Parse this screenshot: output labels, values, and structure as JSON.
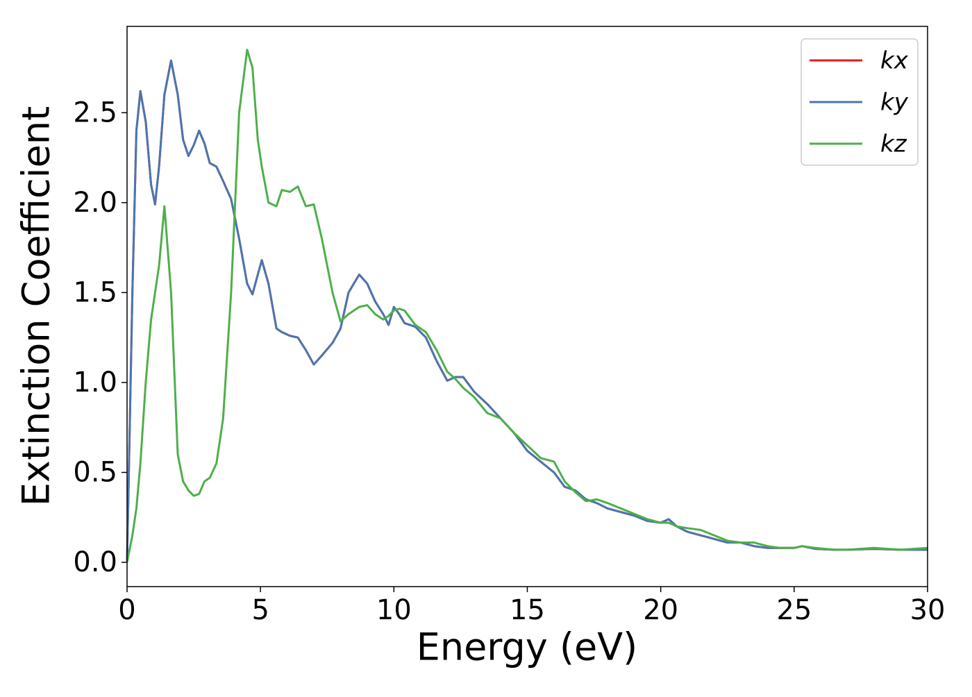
{
  "chart_data": {
    "type": "line",
    "xlabel": "Energy (eV)",
    "ylabel": "Extinction Coefficient",
    "xlim": [
      0,
      30
    ],
    "ylim": [
      -0.135,
      2.98
    ],
    "xticks": [
      0,
      5,
      10,
      15,
      20,
      25,
      30
    ],
    "yticks": [
      {
        "value": 0,
        "label": "0.0"
      },
      0.5,
      {
        "value": 1,
        "label": "1.0"
      },
      1.5,
      {
        "value": 2,
        "label": "2.0"
      },
      2.5
    ],
    "legend": "upper right",
    "x": [
      0,
      0.2,
      0.35,
      0.5,
      0.7,
      0.9,
      1.05,
      1.2,
      1.4,
      1.65,
      1.9,
      2.1,
      2.3,
      2.5,
      2.7,
      2.9,
      3.1,
      3.35,
      3.6,
      3.9,
      4.2,
      4.5,
      4.7,
      4.9,
      5.05,
      5.3,
      5.6,
      5.8,
      6.1,
      6.4,
      6.7,
      7.0,
      7.3,
      7.7,
      8.0,
      8.3,
      8.7,
      9.0,
      9.3,
      9.6,
      9.8,
      10.0,
      10.2,
      10.4,
      10.8,
      11.2,
      11.6,
      12.0,
      12.3,
      12.6,
      13.0,
      13.5,
      14.0,
      14.5,
      15.0,
      15.5,
      16.0,
      16.4,
      16.8,
      17.2,
      17.6,
      18.0,
      18.5,
      19.0,
      19.5,
      20.0,
      20.3,
      20.6,
      21.0,
      21.5,
      22.0,
      22.5,
      23.0,
      23.5,
      24.0,
      24.5,
      25.0,
      25.3,
      25.8,
      26.5,
      27.0,
      28.0,
      29.0,
      30.0
    ],
    "series": [
      {
        "name": "kx",
        "color": "#e41a1c",
        "values": [
          0.0,
          1.5,
          2.4,
          2.62,
          2.45,
          2.1,
          1.99,
          2.2,
          2.6,
          2.79,
          2.6,
          2.35,
          2.26,
          2.32,
          2.4,
          2.33,
          2.22,
          2.2,
          2.12,
          2.02,
          1.8,
          1.55,
          1.49,
          1.6,
          1.68,
          1.55,
          1.3,
          1.28,
          1.26,
          1.25,
          1.18,
          1.1,
          1.15,
          1.22,
          1.3,
          1.5,
          1.6,
          1.55,
          1.45,
          1.38,
          1.32,
          1.42,
          1.38,
          1.33,
          1.31,
          1.25,
          1.12,
          1.01,
          1.03,
          1.03,
          0.95,
          0.88,
          0.8,
          0.72,
          0.62,
          0.56,
          0.5,
          0.42,
          0.4,
          0.35,
          0.33,
          0.3,
          0.28,
          0.26,
          0.23,
          0.22,
          0.24,
          0.2,
          0.17,
          0.15,
          0.13,
          0.11,
          0.11,
          0.09,
          0.08,
          0.08,
          0.08,
          0.09,
          0.075,
          0.07,
          0.07,
          0.075,
          0.07,
          0.07
        ]
      },
      {
        "name": "ky",
        "color": "#4a76b0",
        "values": [
          0.0,
          1.5,
          2.4,
          2.62,
          2.45,
          2.1,
          1.99,
          2.2,
          2.6,
          2.79,
          2.6,
          2.35,
          2.26,
          2.32,
          2.4,
          2.33,
          2.22,
          2.2,
          2.12,
          2.02,
          1.8,
          1.55,
          1.49,
          1.6,
          1.68,
          1.55,
          1.3,
          1.28,
          1.26,
          1.25,
          1.18,
          1.1,
          1.15,
          1.22,
          1.3,
          1.5,
          1.6,
          1.55,
          1.45,
          1.38,
          1.32,
          1.42,
          1.38,
          1.33,
          1.31,
          1.25,
          1.12,
          1.01,
          1.03,
          1.03,
          0.95,
          0.88,
          0.8,
          0.72,
          0.62,
          0.56,
          0.5,
          0.42,
          0.4,
          0.35,
          0.33,
          0.3,
          0.28,
          0.26,
          0.23,
          0.22,
          0.24,
          0.2,
          0.17,
          0.15,
          0.13,
          0.11,
          0.11,
          0.09,
          0.08,
          0.08,
          0.08,
          0.09,
          0.075,
          0.07,
          0.07,
          0.075,
          0.07,
          0.07
        ]
      },
      {
        "name": "kz",
        "color": "#4daf4a",
        "values": [
          0.0,
          0.15,
          0.3,
          0.55,
          1.0,
          1.35,
          1.5,
          1.65,
          1.98,
          1.5,
          0.6,
          0.45,
          0.4,
          0.37,
          0.38,
          0.45,
          0.47,
          0.55,
          0.8,
          1.5,
          2.5,
          2.85,
          2.75,
          2.35,
          2.2,
          2.0,
          1.98,
          2.07,
          2.06,
          2.09,
          1.98,
          1.99,
          1.8,
          1.5,
          1.34,
          1.38,
          1.42,
          1.43,
          1.38,
          1.35,
          1.37,
          1.4,
          1.41,
          1.4,
          1.32,
          1.28,
          1.18,
          1.06,
          1.02,
          0.97,
          0.92,
          0.83,
          0.8,
          0.72,
          0.65,
          0.58,
          0.56,
          0.45,
          0.39,
          0.34,
          0.35,
          0.33,
          0.3,
          0.27,
          0.24,
          0.22,
          0.22,
          0.2,
          0.19,
          0.18,
          0.15,
          0.12,
          0.11,
          0.11,
          0.09,
          0.08,
          0.08,
          0.09,
          0.08,
          0.07,
          0.07,
          0.08,
          0.07,
          0.08
        ]
      }
    ]
  }
}
